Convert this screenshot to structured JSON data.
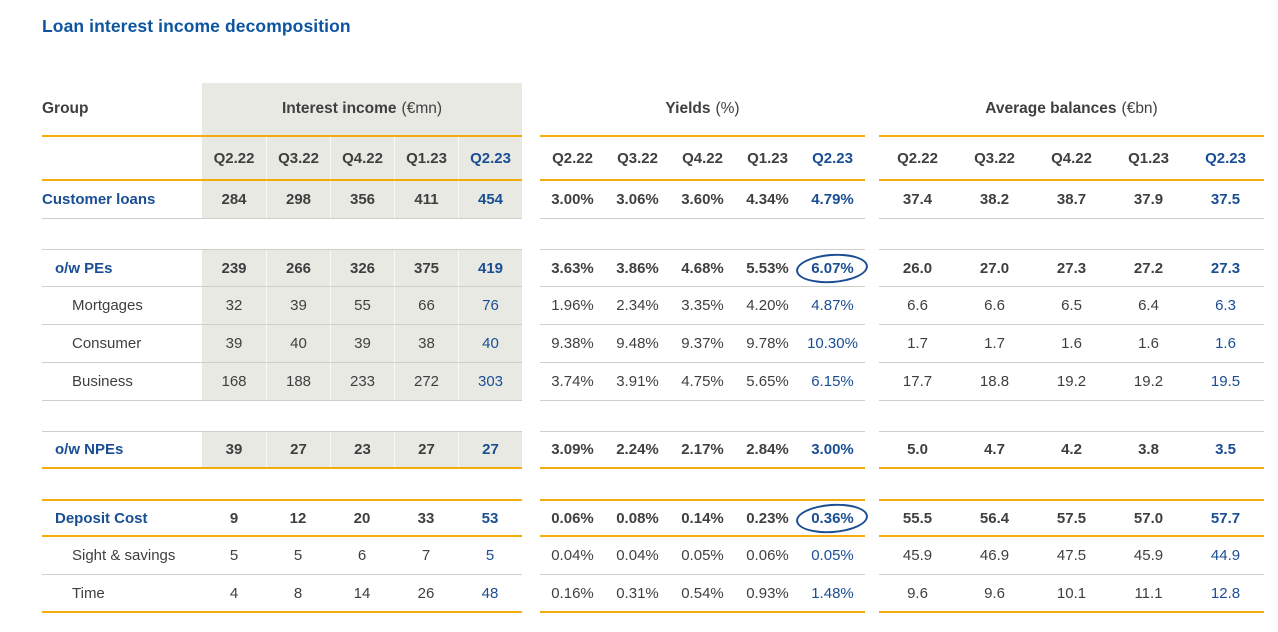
{
  "title": "Loan interest income decomposition",
  "colors": {
    "title_blue": "#0d55a0",
    "data_blue": "#1a4e94",
    "gold_rule": "#f2ac0b",
    "gray_band": "#e9e9e3",
    "divider_gray": "#cfcfca",
    "text_dark": "#3f3f3f"
  },
  "table": {
    "group_label": "Group",
    "quarters": [
      "Q2.22",
      "Q3.22",
      "Q4.22",
      "Q1.23",
      "Q2.23"
    ],
    "sections": [
      {
        "name": "Interest income",
        "unit": "(€mn)"
      },
      {
        "name": "Yields",
        "unit": "(%)"
      },
      {
        "name": "Average balances",
        "unit": "(€bn)"
      }
    ],
    "annotations": {
      "circled_values": [
        "6.07%",
        "0.36%"
      ]
    },
    "rows": [
      {
        "type": "data",
        "label": "Customer loans",
        "indent": 0,
        "labelStyle": "blue",
        "bold": true,
        "gray": true,
        "borderBottom": "gray",
        "ii": [
          "284",
          "298",
          "356",
          "411",
          "454"
        ],
        "yields": [
          "3.00%",
          "3.06%",
          "3.60%",
          "4.34%",
          "4.79%"
        ],
        "balances": [
          "37.4",
          "38.2",
          "38.7",
          "37.9",
          "37.5"
        ]
      },
      {
        "type": "spacer"
      },
      {
        "type": "data",
        "label": "o/w PEs",
        "indent": 1,
        "labelStyle": "blue",
        "bold": true,
        "gray": true,
        "borderTop": "gray",
        "borderBottom": "gray",
        "circle": "yields",
        "ii": [
          "239",
          "266",
          "326",
          "375",
          "419"
        ],
        "yields": [
          "3.63%",
          "3.86%",
          "4.68%",
          "5.53%",
          "6.07%"
        ],
        "balances": [
          "26.0",
          "27.0",
          "27.3",
          "27.2",
          "27.3"
        ]
      },
      {
        "type": "data",
        "label": "Mortgages",
        "indent": 2,
        "gray": true,
        "borderBottom": "gray",
        "ii": [
          "32",
          "39",
          "55",
          "66",
          "76"
        ],
        "yields": [
          "1.96%",
          "2.34%",
          "3.35%",
          "4.20%",
          "4.87%"
        ],
        "balances": [
          "6.6",
          "6.6",
          "6.5",
          "6.4",
          "6.3"
        ]
      },
      {
        "type": "data",
        "label": "Consumer",
        "indent": 2,
        "gray": true,
        "borderBottom": "gray",
        "ii": [
          "39",
          "40",
          "39",
          "38",
          "40"
        ],
        "yields": [
          "9.38%",
          "9.48%",
          "9.37%",
          "9.78%",
          "10.30%"
        ],
        "balances": [
          "1.7",
          "1.7",
          "1.6",
          "1.6",
          "1.6"
        ]
      },
      {
        "type": "data",
        "label": "Business",
        "indent": 2,
        "gray": true,
        "borderBottom": "gray",
        "ii": [
          "168",
          "188",
          "233",
          "272",
          "303"
        ],
        "yields": [
          "3.74%",
          "3.91%",
          "4.75%",
          "5.65%",
          "6.15%"
        ],
        "balances": [
          "17.7",
          "18.8",
          "19.2",
          "19.2",
          "19.5"
        ]
      },
      {
        "type": "spacer"
      },
      {
        "type": "data",
        "label": "o/w NPEs",
        "indent": 1,
        "labelStyle": "blue",
        "bold": true,
        "gray": true,
        "borderTop": "gray",
        "borderBottom": "gold",
        "ii": [
          "39",
          "27",
          "23",
          "27",
          "27"
        ],
        "yields": [
          "3.09%",
          "2.24%",
          "2.17%",
          "2.84%",
          "3.00%"
        ],
        "balances": [
          "5.0",
          "4.7",
          "4.2",
          "3.8",
          "3.5"
        ]
      },
      {
        "type": "spacer"
      },
      {
        "type": "data",
        "label": "Deposit Cost",
        "indent": 1,
        "labelStyle": "blue",
        "bold": true,
        "borderTop": "gold",
        "borderBottom": "gold",
        "circle": "yields",
        "ii": [
          "9",
          "12",
          "20",
          "33",
          "53"
        ],
        "yields": [
          "0.06%",
          "0.08%",
          "0.14%",
          "0.23%",
          "0.36%"
        ],
        "balances": [
          "55.5",
          "56.4",
          "57.5",
          "57.0",
          "57.7"
        ]
      },
      {
        "type": "data",
        "label": "Sight & savings",
        "indent": 2,
        "borderBottom": "gray",
        "ii": [
          "5",
          "5",
          "6",
          "7",
          "5"
        ],
        "yields": [
          "0.04%",
          "0.04%",
          "0.05%",
          "0.06%",
          "0.05%"
        ],
        "balances": [
          "45.9",
          "46.9",
          "47.5",
          "45.9",
          "44.9"
        ]
      },
      {
        "type": "data",
        "label": "Time",
        "indent": 2,
        "borderBottom": "gold",
        "ii": [
          "4",
          "8",
          "14",
          "26",
          "48"
        ],
        "yields": [
          "0.16%",
          "0.31%",
          "0.54%",
          "0.93%",
          "1.48%"
        ],
        "balances": [
          "9.6",
          "9.6",
          "10.1",
          "11.1",
          "12.8"
        ]
      }
    ]
  }
}
